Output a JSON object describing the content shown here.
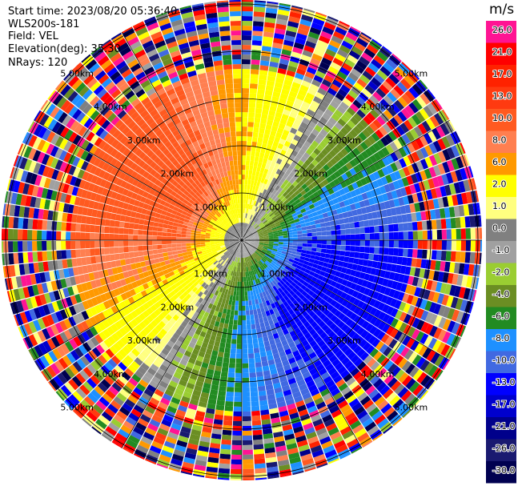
{
  "header": {
    "start_time": "Start time: 2023/08/20 05:36:40",
    "instrument": "WLS200s-181",
    "field": "Field: VEL",
    "elevation": "Elevation(deg): 35.30",
    "nrays": "NRays: 120"
  },
  "colorbar": {
    "unit": "m/s",
    "labels": [
      "26.0",
      "21.0",
      "17.0",
      "13.0",
      "10.0",
      "8.0",
      "6.0",
      "2.0",
      "1.0",
      "0.0",
      "-1.0",
      "-2.0",
      "-4.0",
      "-6.0",
      "-8.0",
      "-10.0",
      "-13.0",
      "-17.0",
      "-21.0",
      "-26.0",
      "-30.0"
    ],
    "colors": [
      "#ff1493",
      "#ff0000",
      "#ff2200",
      "#ff3a10",
      "#ff5a20",
      "#ff7f50",
      "#ff9900",
      "#ffff00",
      "#ffff80",
      "#808080",
      "#a0a0a0",
      "#9acd32",
      "#6b8e23",
      "#228b22",
      "#1e90ff",
      "#4169e1",
      "#0000ff",
      "#0000cd",
      "#00008b",
      "#191970",
      "#000050"
    ]
  },
  "chart_data": {
    "type": "ppi",
    "field": "VEL",
    "units": "m/s",
    "nrays": 120,
    "elevation_deg": 35.3,
    "range_rings_km": [
      1.0,
      2.0,
      3.0,
      4.0,
      5.0
    ],
    "ring_labels": [
      "1.00km",
      "2.00km",
      "3.00km",
      "4.00km",
      "5.00km"
    ],
    "vmin": -30.0,
    "vmax": 26.0
  }
}
